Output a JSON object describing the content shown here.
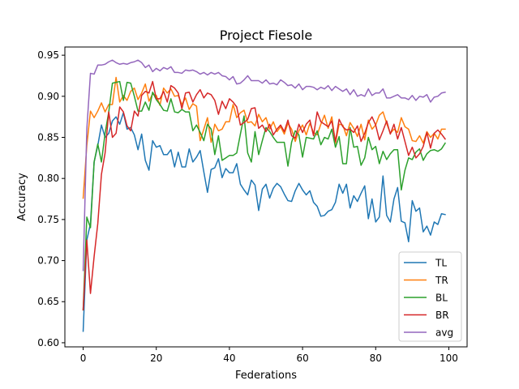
{
  "chart_data": {
    "type": "line",
    "title": "Project Fiesole",
    "xlabel": "Federations",
    "ylabel": "Accuracy",
    "xlim": [
      -5,
      105
    ],
    "ylim": [
      0.595,
      0.96
    ],
    "xticks": [
      0,
      20,
      40,
      60,
      80,
      100
    ],
    "yticks": [
      0.6,
      0.65,
      0.7,
      0.75,
      0.8,
      0.85,
      0.9,
      0.95
    ],
    "xtick_labels": [
      "0",
      "20",
      "40",
      "60",
      "80",
      "100"
    ],
    "ytick_labels": [
      "0.60",
      "0.65",
      "0.70",
      "0.75",
      "0.80",
      "0.85",
      "0.90",
      "0.95"
    ],
    "grid": false,
    "legend_position": "lower-right",
    "series": [
      {
        "name": "TL",
        "color": "#1f77b4",
        "values": [
          0.614,
          0.725,
          0.745,
          0.82,
          0.84,
          0.865,
          0.85,
          0.855,
          0.87,
          0.875,
          0.866,
          0.88,
          0.86,
          0.862,
          0.853,
          0.835,
          0.854,
          0.822,
          0.81,
          0.846,
          0.838,
          0.84,
          0.829,
          0.829,
          0.835,
          0.814,
          0.832,
          0.814,
          0.814,
          0.836,
          0.82,
          0.826,
          0.834,
          0.808,
          0.783,
          0.811,
          0.813,
          0.824,
          0.801,
          0.812,
          0.807,
          0.807,
          0.818,
          0.793,
          0.786,
          0.78,
          0.798,
          0.792,
          0.761,
          0.787,
          0.793,
          0.776,
          0.788,
          0.794,
          0.79,
          0.781,
          0.773,
          0.772,
          0.785,
          0.794,
          0.786,
          0.78,
          0.785,
          0.771,
          0.766,
          0.754,
          0.755,
          0.76,
          0.762,
          0.771,
          0.793,
          0.782,
          0.793,
          0.764,
          0.779,
          0.772,
          0.782,
          0.791,
          0.751,
          0.775,
          0.747,
          0.753,
          0.803,
          0.755,
          0.747,
          0.775,
          0.789,
          0.748,
          0.746,
          0.723,
          0.773,
          0.76,
          0.764,
          0.735,
          0.742,
          0.731,
          0.747,
          0.744,
          0.757,
          0.756
        ]
      },
      {
        "name": "TR",
        "color": "#ff7f0e",
        "values": [
          0.776,
          0.84,
          0.882,
          0.874,
          0.882,
          0.892,
          0.881,
          0.89,
          0.89,
          0.923,
          0.893,
          0.901,
          0.895,
          0.906,
          0.91,
          0.896,
          0.904,
          0.915,
          0.894,
          0.903,
          0.901,
          0.889,
          0.91,
          0.904,
          0.909,
          0.9,
          0.901,
          0.89,
          0.898,
          0.884,
          0.891,
          0.888,
          0.846,
          0.86,
          0.874,
          0.844,
          0.866,
          0.858,
          0.86,
          0.869,
          0.869,
          0.89,
          0.874,
          0.88,
          0.883,
          0.868,
          0.869,
          0.864,
          0.878,
          0.869,
          0.874,
          0.86,
          0.869,
          0.857,
          0.863,
          0.854,
          0.867,
          0.86,
          0.845,
          0.858,
          0.865,
          0.853,
          0.867,
          0.856,
          0.853,
          0.866,
          0.877,
          0.861,
          0.875,
          0.843,
          0.866,
          0.865,
          0.852,
          0.868,
          0.861,
          0.851,
          0.866,
          0.847,
          0.871,
          0.86,
          0.865,
          0.877,
          0.881,
          0.867,
          0.855,
          0.86,
          0.856,
          0.874,
          0.863,
          0.86,
          0.846,
          0.845,
          0.852,
          0.843,
          0.857,
          0.85,
          0.855,
          0.848,
          0.86,
          0.86
        ]
      },
      {
        "name": "BL",
        "color": "#2ca02c",
        "values": [
          0.64,
          0.753,
          0.74,
          0.82,
          0.842,
          0.82,
          0.855,
          0.881,
          0.916,
          0.917,
          0.918,
          0.895,
          0.917,
          0.916,
          0.9,
          0.882,
          0.882,
          0.893,
          0.883,
          0.905,
          0.896,
          0.89,
          0.883,
          0.882,
          0.897,
          0.881,
          0.88,
          0.884,
          0.881,
          0.881,
          0.858,
          0.865,
          0.856,
          0.846,
          0.866,
          0.86,
          0.829,
          0.852,
          0.822,
          0.825,
          0.828,
          0.828,
          0.831,
          0.854,
          0.876,
          0.831,
          0.82,
          0.857,
          0.829,
          0.846,
          0.862,
          0.857,
          0.85,
          0.844,
          0.844,
          0.844,
          0.815,
          0.844,
          0.858,
          0.853,
          0.826,
          0.85,
          0.849,
          0.848,
          0.858,
          0.841,
          0.85,
          0.848,
          0.86,
          0.838,
          0.851,
          0.818,
          0.818,
          0.862,
          0.838,
          0.839,
          0.816,
          0.825,
          0.85,
          0.835,
          0.839,
          0.818,
          0.833,
          0.823,
          0.83,
          0.835,
          0.835,
          0.786,
          0.81,
          0.825,
          0.823,
          0.832,
          0.836,
          0.822,
          0.83,
          0.834,
          0.835,
          0.833,
          0.836,
          0.843
        ]
      },
      {
        "name": "BR",
        "color": "#d62728",
        "values": [
          0.64,
          0.725,
          0.66,
          0.705,
          0.745,
          0.805,
          0.831,
          0.881,
          0.85,
          0.855,
          0.887,
          0.881,
          0.864,
          0.858,
          0.882,
          0.876,
          0.901,
          0.906,
          0.904,
          0.918,
          0.897,
          0.897,
          0.906,
          0.893,
          0.913,
          0.91,
          0.904,
          0.885,
          0.904,
          0.905,
          0.893,
          0.902,
          0.908,
          0.898,
          0.904,
          0.902,
          0.895,
          0.878,
          0.894,
          0.885,
          0.897,
          0.893,
          0.887,
          0.865,
          0.868,
          0.872,
          0.885,
          0.886,
          0.861,
          0.865,
          0.857,
          0.866,
          0.853,
          0.86,
          0.865,
          0.857,
          0.871,
          0.852,
          0.849,
          0.866,
          0.856,
          0.866,
          0.871,
          0.852,
          0.881,
          0.869,
          0.866,
          0.863,
          0.87,
          0.845,
          0.872,
          0.863,
          0.859,
          0.86,
          0.856,
          0.864,
          0.845,
          0.855,
          0.868,
          0.875,
          0.865,
          0.847,
          0.858,
          0.87,
          0.854,
          0.866,
          0.848,
          0.862,
          0.845,
          0.828,
          0.838,
          0.825,
          0.83,
          0.839,
          0.856,
          0.837,
          0.855,
          0.859,
          0.854,
          0.848
        ]
      },
      {
        "name": "avg",
        "color": "#9467bd",
        "values": [
          0.688,
          0.86,
          0.928,
          0.927,
          0.938,
          0.938,
          0.939,
          0.942,
          0.944,
          0.941,
          0.939,
          0.94,
          0.939,
          0.941,
          0.942,
          0.944,
          0.941,
          0.935,
          0.938,
          0.93,
          0.934,
          0.931,
          0.935,
          0.933,
          0.936,
          0.929,
          0.929,
          0.928,
          0.932,
          0.931,
          0.932,
          0.93,
          0.927,
          0.929,
          0.926,
          0.929,
          0.927,
          0.929,
          0.925,
          0.924,
          0.92,
          0.924,
          0.915,
          0.916,
          0.92,
          0.925,
          0.919,
          0.919,
          0.919,
          0.916,
          0.92,
          0.915,
          0.916,
          0.914,
          0.92,
          0.917,
          0.913,
          0.914,
          0.91,
          0.915,
          0.908,
          0.912,
          0.912,
          0.911,
          0.908,
          0.911,
          0.909,
          0.913,
          0.907,
          0.912,
          0.909,
          0.906,
          0.909,
          0.902,
          0.908,
          0.9,
          0.902,
          0.9,
          0.909,
          0.901,
          0.904,
          0.904,
          0.909,
          0.898,
          0.898,
          0.9,
          0.902,
          0.898,
          0.898,
          0.896,
          0.901,
          0.895,
          0.9,
          0.899,
          0.902,
          0.893,
          0.899,
          0.9,
          0.904,
          0.905
        ]
      }
    ]
  }
}
